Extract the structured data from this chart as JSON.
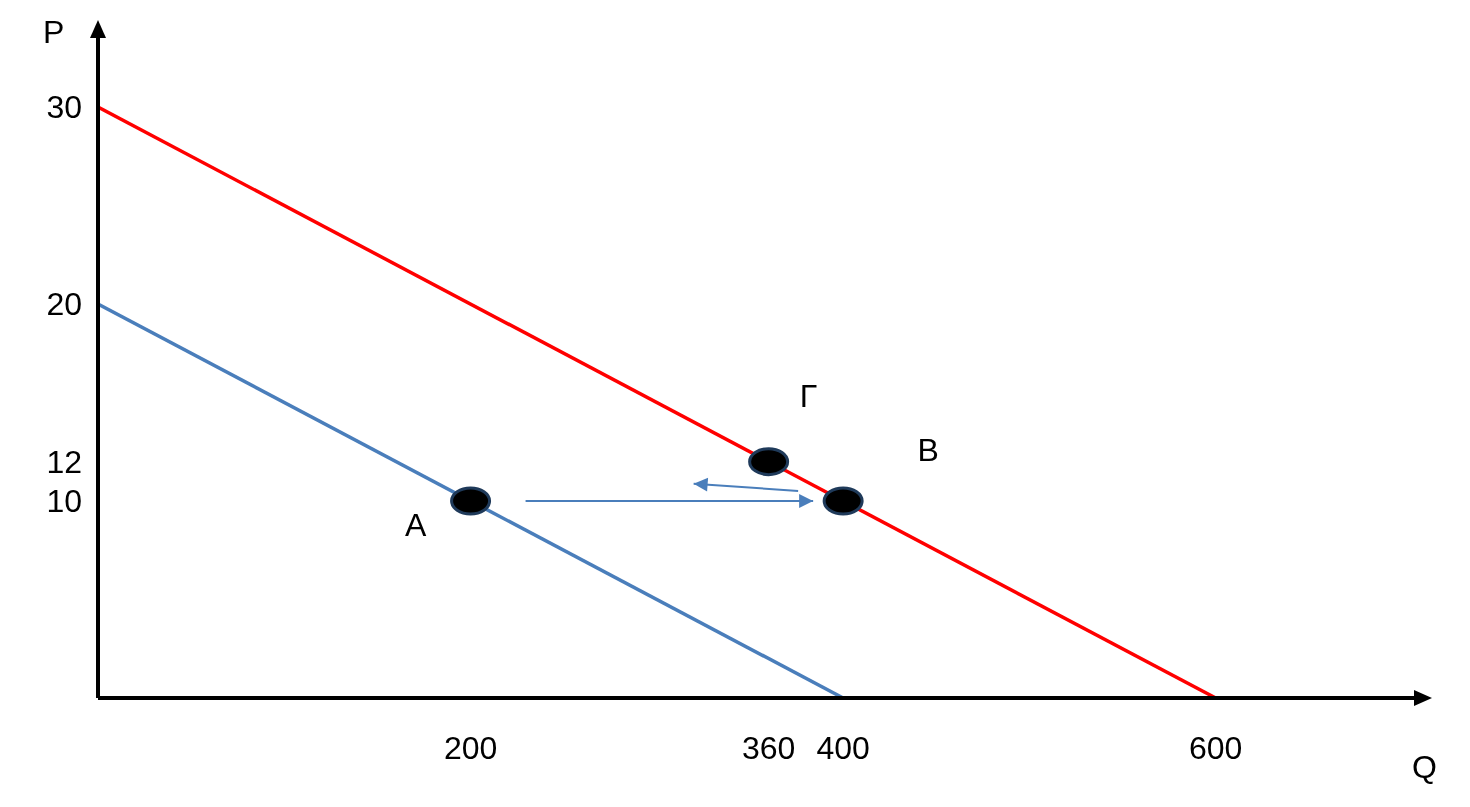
{
  "chart_data": {
    "type": "line",
    "xlabel": "Q",
    "ylabel": "P",
    "xlim": [
      0,
      700
    ],
    "xticks": [
      200,
      360,
      400,
      600
    ],
    "ylim": [
      0,
      33
    ],
    "yticks": [
      10,
      12,
      20,
      30
    ],
    "grid": false,
    "legend": false,
    "marker": "none",
    "line_style": "solid",
    "series": [
      {
        "color": "#4a7ebb",
        "x": [
          0,
          400
        ],
        "values": [
          20,
          0
        ]
      },
      {
        "color": "#ff0000",
        "x": [
          0,
          600
        ],
        "values": [
          30,
          0
        ]
      },
      {
        "type": "scatter",
        "color": "#000000",
        "marker": "circle",
        "x": [
          200,
          360,
          400
        ],
        "values": [
          10,
          12,
          10
        ]
      }
    ],
    "annotations": [
      {
        "text": "A",
        "x": 200,
        "y": 10
      },
      {
        "text": "Γ",
        "x": 360,
        "y": 12
      },
      {
        "text": "B",
        "x": 400,
        "y": 10
      }
    ]
  }
}
